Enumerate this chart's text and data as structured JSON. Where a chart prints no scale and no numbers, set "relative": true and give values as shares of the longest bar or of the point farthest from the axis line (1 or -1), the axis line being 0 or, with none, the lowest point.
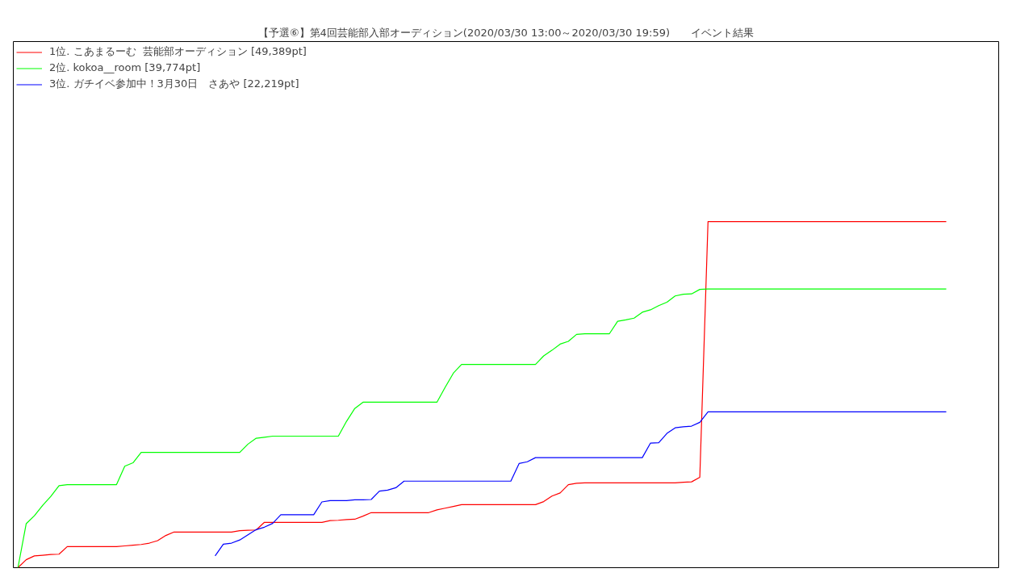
{
  "chart_data": {
    "type": "line",
    "title": "【予選⑥】第4回芸能部入部オーディション(2020/03/30 13:00～2020/03/30 19:59)　　イベント結果",
    "relative": true,
    "legend": "top left",
    "categories": [
      null,
      null,
      null,
      null,
      null,
      null,
      null,
      null,
      null,
      null,
      null,
      null,
      null,
      null,
      null,
      null,
      null,
      null,
      null,
      null,
      null,
      null,
      null,
      null,
      null,
      null,
      null,
      null,
      null,
      null,
      null,
      null,
      null,
      null,
      null,
      null,
      null,
      null,
      null,
      null,
      null,
      null,
      null,
      null,
      null,
      null,
      null,
      null,
      null,
      null,
      null,
      null,
      null,
      null,
      null,
      null,
      null,
      null,
      null,
      null,
      null,
      null,
      null,
      null,
      null,
      null,
      null,
      null,
      null,
      null,
      null,
      null,
      null,
      null,
      null,
      null,
      null,
      null,
      null,
      null,
      null,
      null,
      null,
      null,
      null,
      null,
      null,
      null,
      null,
      null,
      null,
      null,
      null,
      null,
      null,
      null,
      null,
      null,
      null,
      null,
      null,
      null,
      null,
      null,
      null,
      null,
      null,
      null,
      null,
      null,
      null,
      null,
      null,
      null
    ],
    "series": [
      {
        "name": "1位. こあまるーむ  芸能部オーディション [49,389pt]",
        "color": "#ff0000",
        "values": [
          0,
          0.023,
          0.034,
          0.036,
          0.038,
          0.039,
          0.061,
          0.061,
          0.061,
          0.061,
          0.061,
          0.061,
          0.061,
          0.063,
          0.065,
          0.067,
          0.071,
          0.078,
          0.093,
          0.103,
          0.103,
          0.103,
          0.103,
          0.103,
          0.103,
          0.103,
          0.103,
          0.107,
          0.108,
          0.109,
          0.131,
          0.131,
          0.131,
          0.131,
          0.131,
          0.131,
          0.131,
          0.131,
          0.136,
          0.137,
          0.139,
          0.14,
          0.149,
          0.159,
          0.159,
          0.159,
          0.159,
          0.159,
          0.159,
          0.159,
          0.159,
          0.167,
          0.172,
          0.177,
          0.182,
          0.182,
          0.182,
          0.182,
          0.182,
          0.182,
          0.182,
          0.182,
          0.182,
          0.182,
          0.191,
          0.207,
          0.216,
          0.24,
          0.244,
          0.245,
          0.245,
          0.245,
          0.245,
          0.245,
          0.245,
          0.245,
          0.245,
          0.245,
          0.245,
          0.245,
          0.245,
          0.247,
          0.248,
          0.261,
          1,
          1,
          1,
          1,
          1,
          1,
          1,
          1,
          1,
          1,
          1,
          1,
          1,
          1,
          1,
          1,
          1,
          1,
          1,
          1,
          1,
          1,
          1,
          1,
          1,
          1,
          1,
          1,
          1,
          1
        ]
      },
      {
        "name": "2位. kokoa__room [39,774pt]",
        "color": "#00ff00",
        "values": [
          0,
          0.127,
          0.15,
          0.18,
          0.206,
          0.237,
          0.24,
          0.24,
          0.24,
          0.24,
          0.24,
          0.24,
          0.24,
          0.293,
          0.303,
          0.333,
          0.333,
          0.333,
          0.333,
          0.333,
          0.333,
          0.333,
          0.333,
          0.333,
          0.333,
          0.333,
          0.333,
          0.333,
          0.357,
          0.374,
          0.377,
          0.38,
          0.38,
          0.38,
          0.38,
          0.38,
          0.38,
          0.38,
          0.38,
          0.38,
          0.423,
          0.46,
          0.478,
          0.478,
          0.478,
          0.478,
          0.478,
          0.478,
          0.478,
          0.478,
          0.478,
          0.478,
          0.521,
          0.562,
          0.587,
          0.587,
          0.587,
          0.587,
          0.587,
          0.587,
          0.587,
          0.587,
          0.587,
          0.587,
          0.612,
          0.628,
          0.646,
          0.654,
          0.674,
          0.676,
          0.676,
          0.676,
          0.676,
          0.712,
          0.716,
          0.721,
          0.738,
          0.745,
          0.757,
          0.767,
          0.785,
          0.79,
          0.791,
          0.804,
          0.805,
          0.805,
          0.805,
          0.805,
          0.805,
          0.805,
          0.805,
          0.805,
          0.805,
          0.805,
          0.805,
          0.805,
          0.805,
          0.805,
          0.805,
          0.805,
          0.805,
          0.805,
          0.805,
          0.805,
          0.805,
          0.805,
          0.805,
          0.805,
          0.805,
          0.805,
          0.805,
          0.805,
          0.805,
          0.805
        ]
      },
      {
        "name": "3位. ガチイベ参加中！3月30日　さあや [22,219pt]",
        "color": "#0000ff",
        "values": [
          null,
          null,
          null,
          null,
          null,
          null,
          null,
          null,
          null,
          null,
          null,
          null,
          null,
          null,
          null,
          null,
          null,
          null,
          null,
          null,
          null,
          null,
          null,
          null,
          0.034,
          0.068,
          0.071,
          0.08,
          0.095,
          0.11,
          0.117,
          0.128,
          0.153,
          0.153,
          0.153,
          0.153,
          0.153,
          0.19,
          0.194,
          0.194,
          0.194,
          0.196,
          0.196,
          0.197,
          0.221,
          0.224,
          0.231,
          0.25,
          0.25,
          0.25,
          0.25,
          0.25,
          0.25,
          0.25,
          0.25,
          0.25,
          0.25,
          0.25,
          0.25,
          0.25,
          0.25,
          0.301,
          0.306,
          0.318,
          0.318,
          0.318,
          0.318,
          0.318,
          0.318,
          0.318,
          0.318,
          0.318,
          0.318,
          0.318,
          0.318,
          0.318,
          0.318,
          0.36,
          0.361,
          0.388,
          0.404,
          0.407,
          0.409,
          0.42,
          0.45,
          0.45,
          0.45,
          0.45,
          0.45,
          0.45,
          0.45,
          0.45,
          0.45,
          0.45,
          0.45,
          0.45,
          0.45,
          0.45,
          0.45,
          0.45,
          0.45,
          0.45,
          0.45,
          0.45,
          0.45,
          0.45,
          0.45,
          0.45,
          0.45,
          0.45,
          0.45,
          0.45,
          0.45,
          0.45
        ]
      }
    ]
  }
}
